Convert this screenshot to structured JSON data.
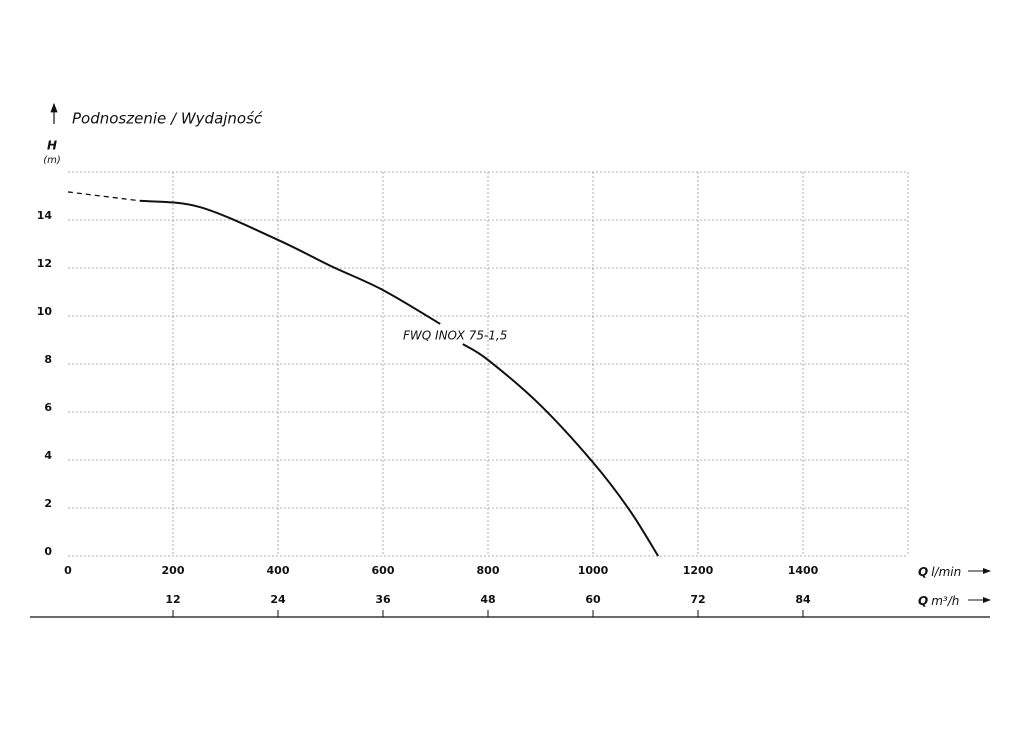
{
  "chart_data": {
    "type": "line",
    "title": "Podnoszenie / Wydajność",
    "y_symbol": "H",
    "y_unit": "(m)",
    "x_symbol": "Q",
    "x_unit": "l/min",
    "x2_symbol": "Q",
    "x2_unit": "m³/h",
    "x": [
      0,
      137,
      251,
      400,
      499,
      600,
      709,
      730,
      752,
      800,
      899,
      1000,
      1070,
      1124
    ],
    "series": [
      {
        "name": "FWQ INOX 75-1,5",
        "color": "#111111",
        "values": [
          null,
          14.8,
          14.54,
          13.17,
          12.1,
          11.08,
          9.67,
          null,
          8.83,
          8.17,
          6.3,
          3.9,
          1.9,
          0
        ]
      },
      {
        "color": "#111111",
        "dashed": true,
        "values": [
          15.17,
          14.8,
          null,
          null,
          null,
          null,
          null,
          null,
          null,
          null,
          null,
          null,
          null,
          null
        ]
      }
    ],
    "xlim": [
      0,
      1600
    ],
    "xticks": [
      0,
      200,
      400,
      600,
      800,
      1000,
      1200,
      1400
    ],
    "x2lim": [
      0,
      96
    ],
    "x2ticks": [
      12,
      24,
      36,
      48,
      60,
      72,
      84
    ],
    "ylim": [
      0,
      16
    ],
    "yticks": [
      0,
      2,
      4,
      6,
      8,
      10,
      12,
      14
    ],
    "grid": true
  }
}
